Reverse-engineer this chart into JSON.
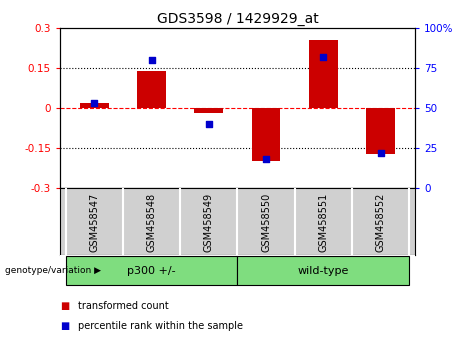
{
  "title": "GDS3598 / 1429929_at",
  "samples": [
    "GSM458547",
    "GSM458548",
    "GSM458549",
    "GSM458550",
    "GSM458551",
    "GSM458552"
  ],
  "red_bars": [
    0.02,
    0.14,
    -0.02,
    -0.2,
    0.255,
    -0.175
  ],
  "blue_dots": [
    53,
    80,
    40,
    18,
    82,
    22
  ],
  "ylim_left": [
    -0.3,
    0.3
  ],
  "ylim_right": [
    0,
    100
  ],
  "yticks_left": [
    -0.3,
    -0.15,
    0,
    0.15,
    0.3
  ],
  "yticks_right": [
    0,
    25,
    50,
    75,
    100
  ],
  "ytick_labels_left": [
    "-0.3",
    "-0.15",
    "0",
    "0.15",
    "0.3"
  ],
  "ytick_labels_right": [
    "0",
    "25",
    "50",
    "75",
    "100%"
  ],
  "hlines": [
    0.15,
    -0.15
  ],
  "group_boundaries": [
    {
      "label": "p300 +/-",
      "start": 0,
      "end": 2
    },
    {
      "label": "wild-type",
      "start": 3,
      "end": 5
    }
  ],
  "group_label": "genotype/variation",
  "legend1_label": "transformed count",
  "legend2_label": "percentile rank within the sample",
  "bar_color": "#cc0000",
  "dot_color": "#0000cc",
  "bar_width": 0.5,
  "sample_bg_color": "#d0d0d0",
  "group_bg": "#7fdd7f",
  "plot_bg": "#ffffff",
  "title_fontsize": 10,
  "tick_fontsize": 7.5,
  "sample_fontsize": 7,
  "group_fontsize": 8,
  "legend_fontsize": 7
}
